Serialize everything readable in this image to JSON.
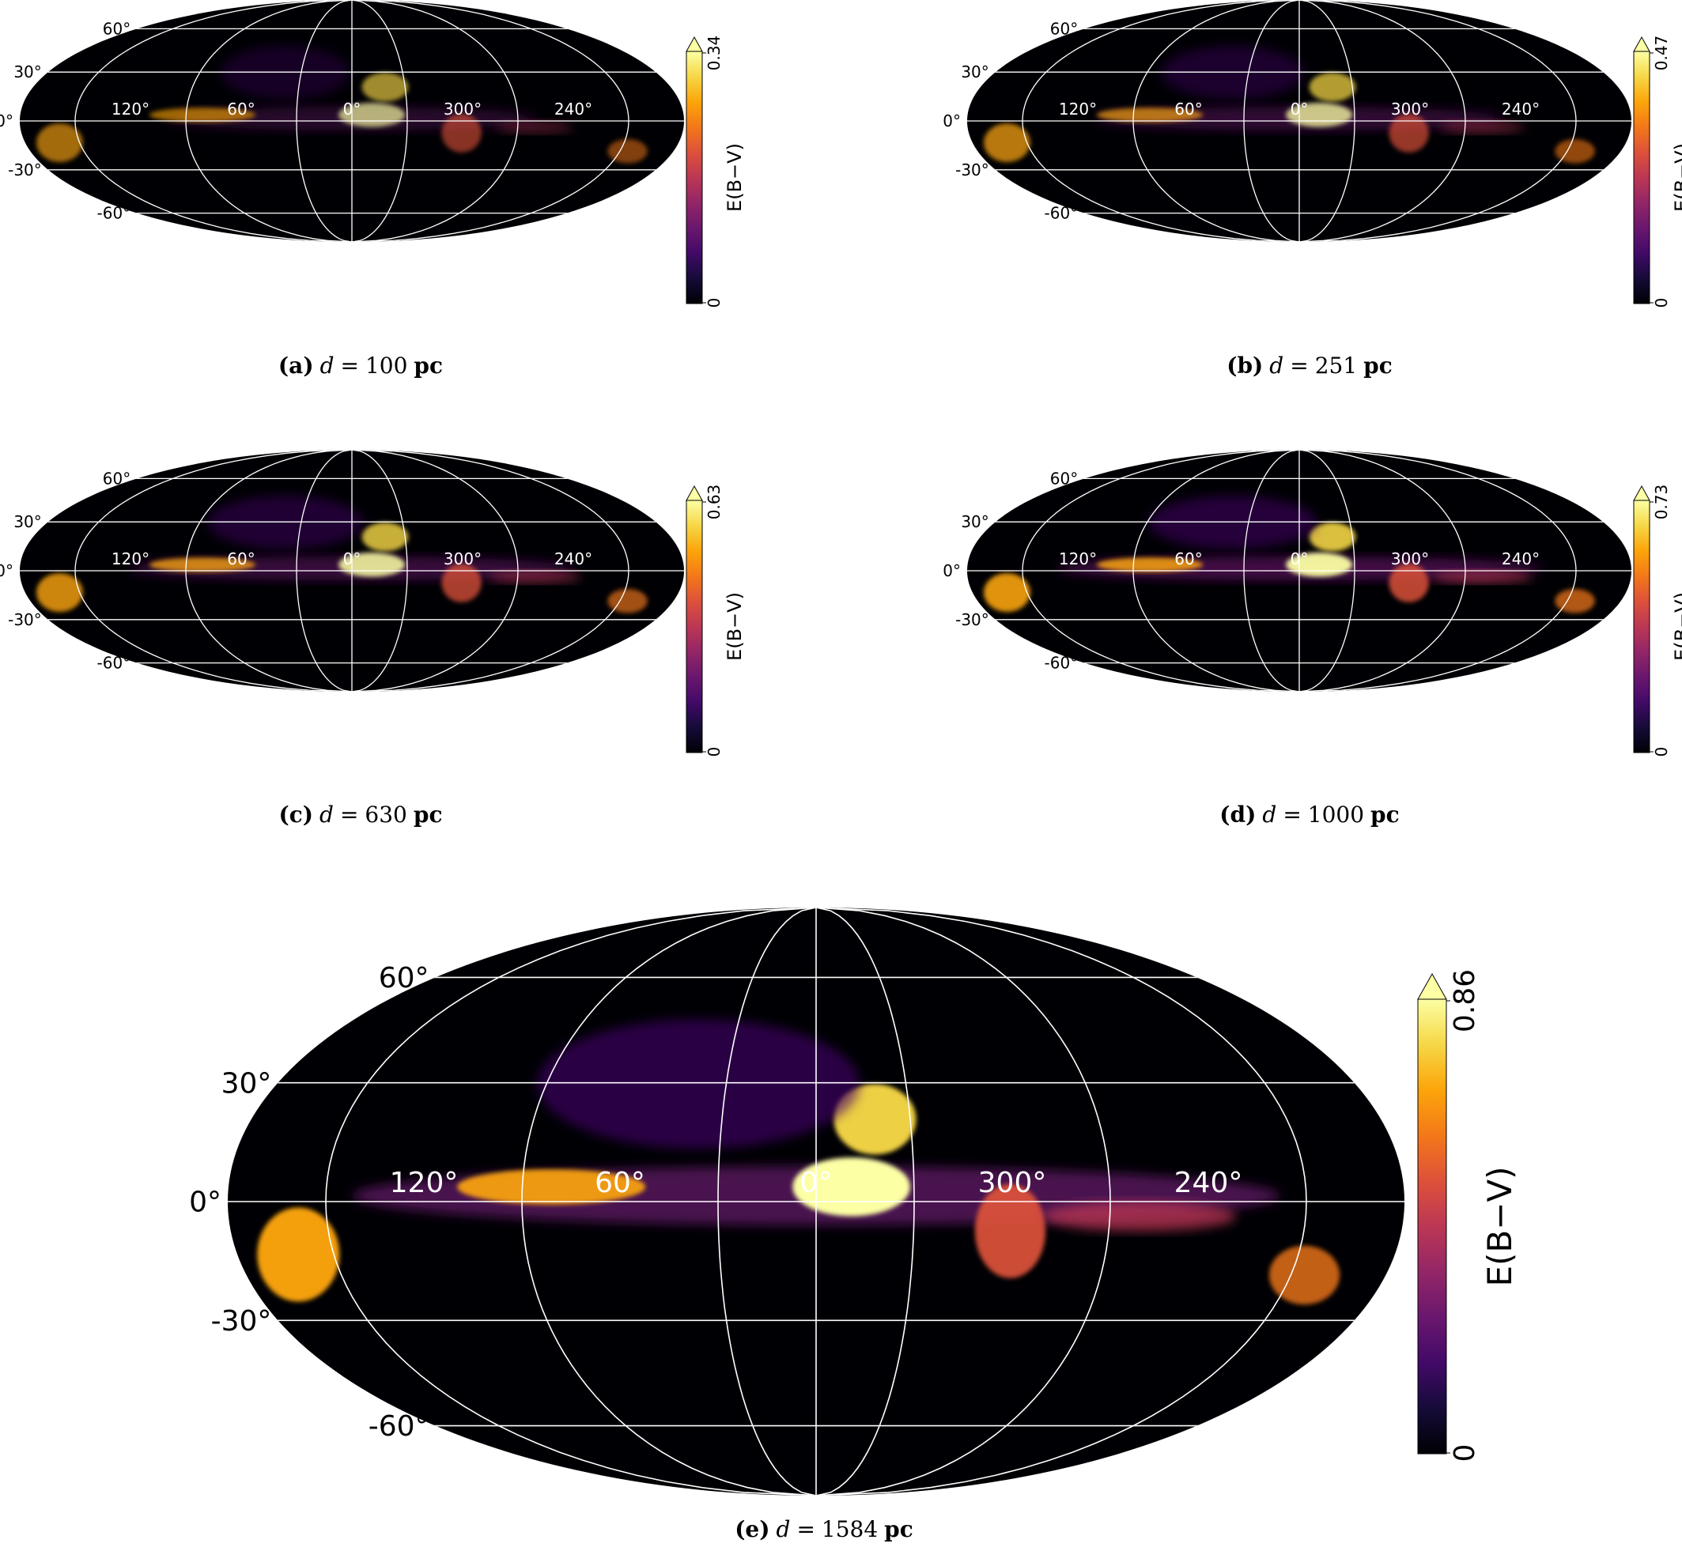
{
  "chart_data": [
    {
      "type": "heatmap",
      "projection": "mollweide",
      "caption": {
        "letter": "(a)",
        "variable": "d",
        "equals": "=",
        "value": "100",
        "unit": "pc"
      },
      "colorbar": {
        "label": "E(B−V)",
        "min": "0",
        "max": "0.34",
        "extend": "max",
        "colormap": "inferno"
      },
      "lon_labels": [
        "120°",
        "60°",
        "0°",
        "300°",
        "240°"
      ],
      "lat_labels": [
        "60°",
        "30°",
        "0°",
        "-30°",
        "-60°"
      ],
      "grid": true
    },
    {
      "type": "heatmap",
      "projection": "mollweide",
      "caption": {
        "letter": "(b)",
        "variable": "d",
        "equals": "=",
        "value": "251",
        "unit": "pc"
      },
      "colorbar": {
        "label": "E(B−V)",
        "min": "0",
        "max": "0.47",
        "extend": "max",
        "colormap": "inferno"
      },
      "lon_labels": [
        "120°",
        "60°",
        "0°",
        "300°",
        "240°"
      ],
      "lat_labels": [
        "60°",
        "30°",
        "0°",
        "-30°",
        "-60°"
      ],
      "grid": true
    },
    {
      "type": "heatmap",
      "projection": "mollweide",
      "caption": {
        "letter": "(c)",
        "variable": "d",
        "equals": "=",
        "value": "630",
        "unit": "pc"
      },
      "colorbar": {
        "label": "E(B−V)",
        "min": "0",
        "max": "0.63",
        "extend": "max",
        "colormap": "inferno"
      },
      "lon_labels": [
        "120°",
        "60°",
        "0°",
        "300°",
        "240°"
      ],
      "lat_labels": [
        "60°",
        "30°",
        "0°",
        "-30°",
        "-60°"
      ],
      "grid": true
    },
    {
      "type": "heatmap",
      "projection": "mollweide",
      "caption": {
        "letter": "(d)",
        "variable": "d",
        "equals": "=",
        "value": "1000",
        "unit": "pc"
      },
      "colorbar": {
        "label": "E(B−V)",
        "min": "0",
        "max": "0.73",
        "extend": "max",
        "colormap": "inferno"
      },
      "lon_labels": [
        "120°",
        "60°",
        "0°",
        "300°",
        "240°"
      ],
      "lat_labels": [
        "60°",
        "30°",
        "0°",
        "-30°",
        "-60°"
      ],
      "grid": true
    },
    {
      "type": "heatmap",
      "projection": "mollweide",
      "caption": {
        "letter": "(e)",
        "variable": "d",
        "equals": "=",
        "value": "1584",
        "unit": "pc"
      },
      "colorbar": {
        "label": "E(B−V)",
        "min": "0",
        "max": "0.86",
        "extend": "max",
        "colormap": "inferno"
      },
      "lon_labels": [
        "120°",
        "60°",
        "0°",
        "300°",
        "240°"
      ],
      "lat_labels": [
        "60°",
        "30°",
        "0°",
        "-30°",
        "-60°"
      ],
      "grid": true
    }
  ]
}
